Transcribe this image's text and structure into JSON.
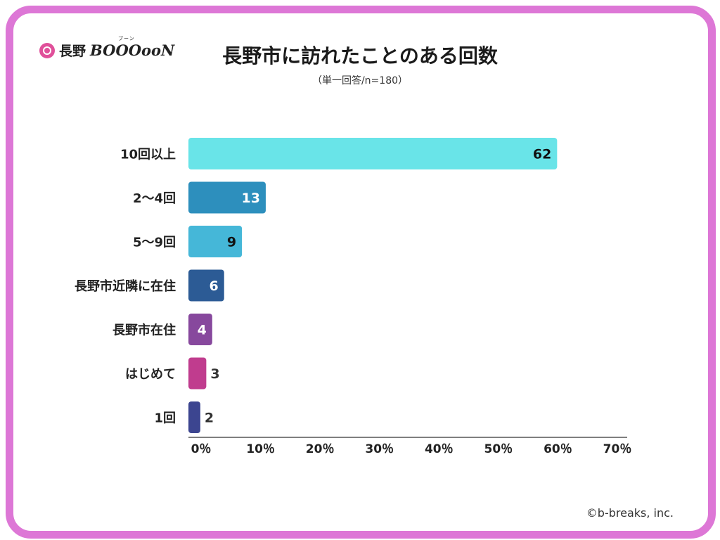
{
  "logo": {
    "text": "長野",
    "brand": "BOOOooN",
    "ruby": "ブーン"
  },
  "footer": "©b-breaks, inc.",
  "colors": {
    "frame": "#dd77d6",
    "axis": "#555555"
  },
  "chart_data": {
    "type": "bar",
    "orientation": "horizontal",
    "title": "長野市に訪れたことのある回数",
    "subtitle": "（単一回答/n=180）",
    "categories": [
      "10回以上",
      "2〜4回",
      "5〜9回",
      "長野市近隣に在住",
      "長野市在住",
      "はじめて",
      "1回"
    ],
    "values": [
      62,
      13,
      9,
      6,
      4,
      3,
      2
    ],
    "value_labels": [
      "62",
      "13",
      "9",
      "6",
      "4",
      "3",
      "2"
    ],
    "bar_colors": [
      "#69e4e8",
      "#2d8fbd",
      "#45b7d8",
      "#2c5b95",
      "#87489d",
      "#c03c8e",
      "#3c4590"
    ],
    "label_colors": [
      "#111111",
      "#ffffff",
      "#111111",
      "#ffffff",
      "#ffffff",
      "#333333",
      "#333333"
    ],
    "xlim": [
      0,
      70
    ],
    "ticks": [
      0,
      10,
      20,
      30,
      40,
      50,
      60,
      70
    ],
    "tick_labels": [
      "0％",
      "10％",
      "20％",
      "30％",
      "40％",
      "50％",
      "60％",
      "70％"
    ],
    "grid": false
  }
}
